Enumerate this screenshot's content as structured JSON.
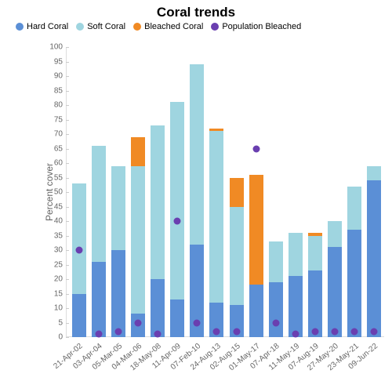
{
  "chart": {
    "title": "Coral trends",
    "title_fontsize": 17,
    "ylabel": "Percent cover",
    "ylim": [
      0,
      100
    ],
    "ytick_step": 5,
    "background_color": "#ffffff",
    "axis_color": "#dddddd",
    "tick_color": "#666666",
    "series": [
      {
        "key": "hard",
        "label": "Hard Coral",
        "color": "#5b8fd6",
        "type": "bar"
      },
      {
        "key": "soft",
        "label": "Soft Coral",
        "color": "#9fd5e0",
        "type": "bar"
      },
      {
        "key": "bleached",
        "label": "Bleached Coral",
        "color": "#f08a24",
        "type": "bar"
      },
      {
        "key": "pop",
        "label": "Population Bleached",
        "color": "#6a3fb0",
        "type": "scatter"
      }
    ],
    "categories": [
      "21-Apr-02",
      "03-Apr-04",
      "05-Mar-05",
      "04-Mar-06",
      "18-May-08",
      "11-Apr-09",
      "07-Feb-10",
      "24-Aug-13",
      "02-Aug-15",
      "01-May-17",
      "07-Apr-18",
      "11-May-19",
      "07-Aug-19",
      "27-May-20",
      "23-May-21",
      "09-Jun-22"
    ],
    "data": {
      "hard": [
        15,
        26,
        30,
        8,
        20,
        13,
        32,
        12,
        11,
        18,
        19,
        21,
        23,
        31,
        37,
        54
      ],
      "soft": [
        38,
        40,
        29,
        51,
        53,
        68,
        62,
        59,
        34,
        0,
        14,
        15,
        12,
        9,
        15,
        5
      ],
      "bleached": [
        0,
        0,
        0,
        10,
        0,
        0,
        0,
        1,
        10,
        38,
        0,
        0,
        1,
        0,
        0,
        0
      ],
      "pop": [
        30,
        1,
        2,
        5,
        1,
        40,
        5,
        2,
        2,
        65,
        5,
        1,
        2,
        2,
        2,
        2
      ]
    },
    "bar_rel_width": 0.72
  }
}
